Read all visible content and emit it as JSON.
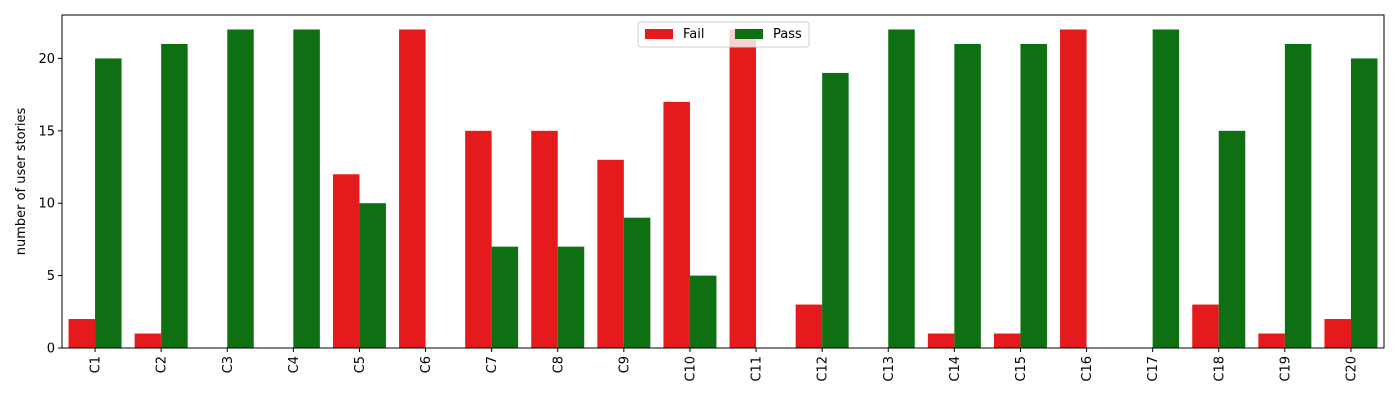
{
  "chart_data": {
    "type": "bar",
    "ylabel": "number of user stories",
    "xlabel": "",
    "title": "",
    "ylim": [
      0,
      23
    ],
    "yticks": [
      0,
      5,
      10,
      15,
      20
    ],
    "categories": [
      "C1",
      "C2",
      "C3",
      "C4",
      "C5",
      "C6",
      "C7",
      "C8",
      "C9",
      "C10",
      "C11",
      "C12",
      "C13",
      "C14",
      "C15",
      "C16",
      "C17",
      "C18",
      "C19",
      "C20"
    ],
    "series": [
      {
        "name": "Fail",
        "color": "#e41a1c",
        "values": [
          2,
          1,
          0,
          0,
          12,
          22,
          15,
          15,
          13,
          17,
          22,
          3,
          0,
          1,
          1,
          22,
          0,
          3,
          1,
          2
        ]
      },
      {
        "name": "Pass",
        "color": "#0e7013",
        "values": [
          20,
          21,
          22,
          22,
          10,
          0,
          7,
          7,
          9,
          5,
          0,
          19,
          22,
          21,
          21,
          0,
          22,
          15,
          21,
          20
        ]
      }
    ],
    "legend": {
      "placement": "upper-center",
      "ncol": 2
    },
    "grid": false
  }
}
